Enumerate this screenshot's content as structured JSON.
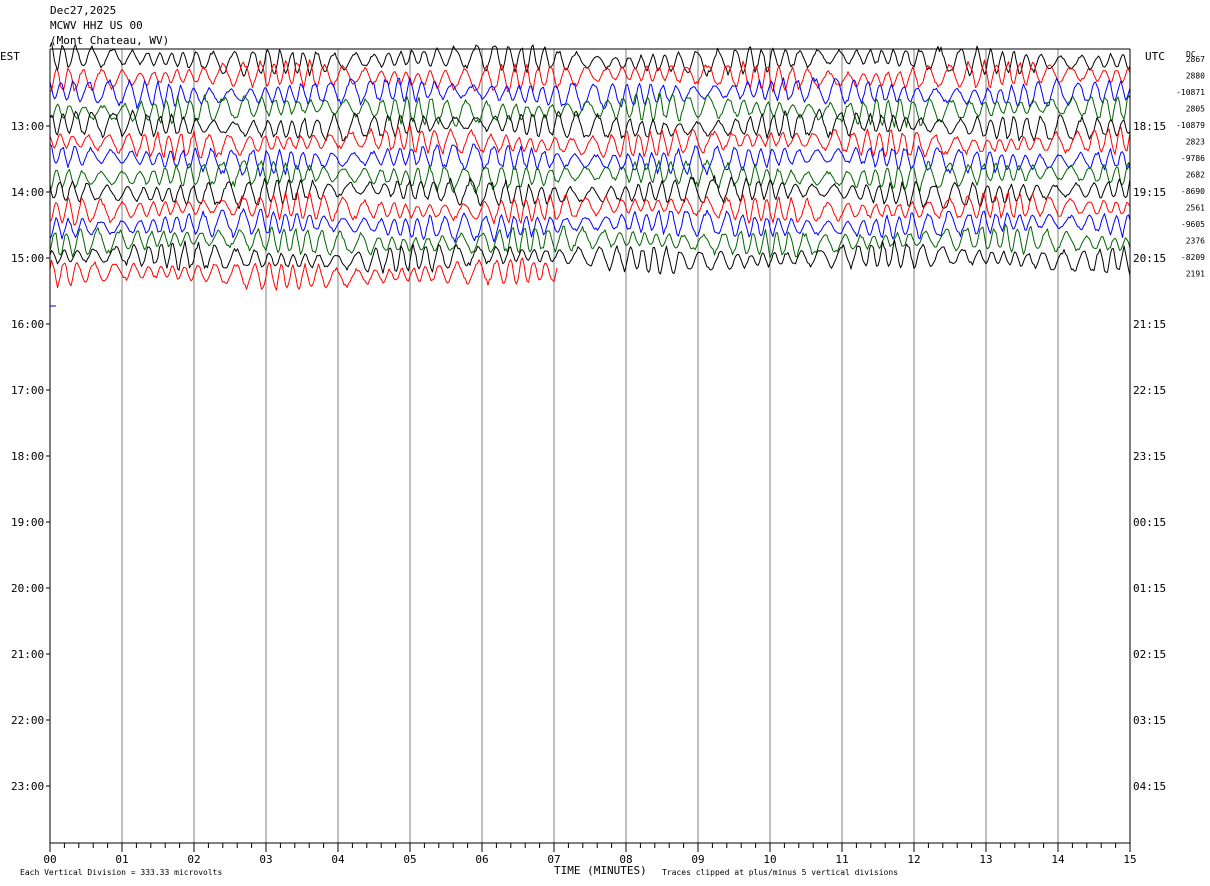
{
  "header": {
    "date": "Dec27,2025",
    "station": "MCWV HHZ US 00",
    "location": "(Mont Chateau, WV)"
  },
  "chart_data": {
    "type": "line",
    "title": "",
    "xlabel": "TIME (MINUTES)",
    "left_timezone": "EST",
    "right_timezone": "UTC",
    "dc_label": "DC",
    "x_ticks": [
      "00",
      "01",
      "02",
      "03",
      "04",
      "05",
      "06",
      "07",
      "08",
      "09",
      "10",
      "11",
      "12",
      "13",
      "14",
      "15"
    ],
    "xlim": [
      0,
      15
    ],
    "left_hour_labels": [
      "13:00",
      "14:00",
      "15:00",
      "16:00",
      "17:00",
      "18:00",
      "19:00",
      "20:00",
      "21:00",
      "22:00",
      "23:00"
    ],
    "right_hour_labels": [
      "18:15",
      "19:15",
      "20:15",
      "21:15",
      "22:15",
      "23:15",
      "00:15",
      "01:15",
      "02:15",
      "03:15",
      "04:15"
    ],
    "rows_per_hour": 4,
    "trace_colors": [
      "#000000",
      "#ff0000",
      "#0000ff",
      "#006400"
    ],
    "traces_full_rows": 13,
    "last_trace_end_minute": 7.05,
    "dc_offsets": [
      "2867",
      "2880",
      "-10871",
      "2805",
      "-10879",
      "2823",
      "-9786",
      "2682",
      "-8690",
      "2561",
      "-9605",
      "2376",
      "-8209",
      "2191"
    ],
    "grid": true,
    "footer_left": "Each Vertical Division =  333.33 microvolts",
    "footer_right": "Traces clipped at plus/minus 5 vertical divisions"
  }
}
